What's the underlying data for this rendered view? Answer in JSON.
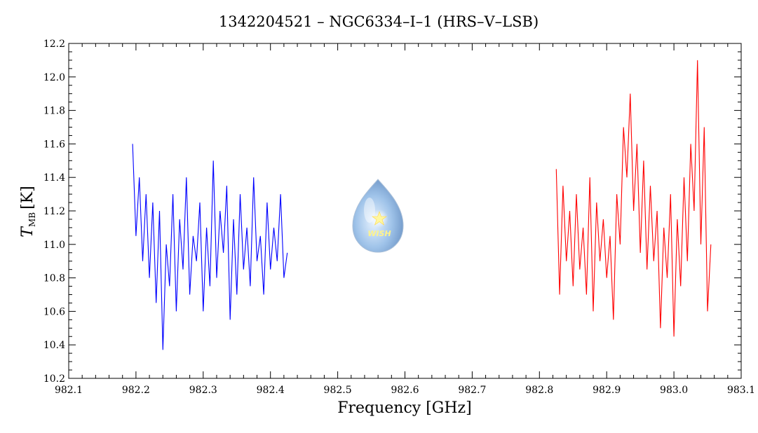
{
  "chart_data": {
    "type": "line",
    "title": "1342204521 – NGC6334–I–1 (HRS–V–LSB)",
    "xlabel": "Frequency [GHz]",
    "ylabel_main": "T",
    "ylabel_sub": "MB",
    "ylabel_unit": "[K]",
    "xlim": [
      982.1,
      983.1
    ],
    "ylim": [
      10.2,
      12.2
    ],
    "xticks": [
      982.1,
      982.2,
      982.3,
      982.4,
      982.5,
      982.6,
      982.7,
      982.8,
      982.9,
      983.0,
      983.1
    ],
    "yticks": [
      10.2,
      10.4,
      10.6,
      10.8,
      11.0,
      11.2,
      11.4,
      11.6,
      11.8,
      12.0,
      12.2
    ],
    "xtick_labels": [
      "982.1",
      "982.2",
      "982.3",
      "982.4",
      "982.5",
      "982.6",
      "982.7",
      "982.8",
      "982.9",
      "983.0",
      "983.1"
    ],
    "ytick_labels": [
      "10.2",
      "10.4",
      "10.6",
      "10.8",
      "11.0",
      "11.2",
      "11.4",
      "11.6",
      "11.8",
      "12.0",
      "12.2"
    ],
    "grid": false,
    "logo_text": "WISH",
    "series": [
      {
        "color": "#0000ff",
        "x": [
          982.195,
          982.2,
          982.205,
          982.21,
          982.215,
          982.22,
          982.225,
          982.23,
          982.235,
          982.24,
          982.245,
          982.25,
          982.255,
          982.26,
          982.265,
          982.27,
          982.275,
          982.28,
          982.285,
          982.29,
          982.295,
          982.3,
          982.305,
          982.31,
          982.315,
          982.32,
          982.325,
          982.33,
          982.335,
          982.34,
          982.345,
          982.35,
          982.355,
          982.36,
          982.365,
          982.37,
          982.375,
          982.38,
          982.385,
          982.39,
          982.395,
          982.4,
          982.405,
          982.41,
          982.415,
          982.42,
          982.425
        ],
        "y": [
          11.6,
          11.05,
          11.4,
          10.9,
          11.3,
          10.8,
          11.25,
          10.65,
          11.2,
          10.37,
          11.0,
          10.75,
          11.3,
          10.6,
          11.15,
          10.85,
          11.4,
          10.7,
          11.05,
          10.9,
          11.25,
          10.6,
          11.1,
          10.75,
          11.5,
          10.8,
          11.2,
          10.95,
          11.35,
          10.55,
          11.15,
          10.7,
          11.3,
          10.85,
          11.1,
          10.75,
          11.4,
          10.9,
          11.05,
          10.7,
          11.25,
          10.85,
          11.1,
          10.9,
          11.3,
          10.8,
          10.95
        ]
      },
      {
        "color": "#ff0000",
        "x": [
          982.825,
          982.83,
          982.835,
          982.84,
          982.845,
          982.85,
          982.855,
          982.86,
          982.865,
          982.87,
          982.875,
          982.88,
          982.885,
          982.89,
          982.895,
          982.9,
          982.905,
          982.91,
          982.915,
          982.92,
          982.925,
          982.93,
          982.935,
          982.94,
          982.945,
          982.95,
          982.955,
          982.96,
          982.965,
          982.97,
          982.975,
          982.98,
          982.985,
          982.99,
          982.995,
          983.0,
          983.005,
          983.01,
          983.015,
          983.02,
          983.025,
          983.03,
          983.035,
          983.04,
          983.045,
          983.05,
          983.055
        ],
        "y": [
          11.45,
          10.7,
          11.35,
          10.9,
          11.2,
          10.75,
          11.3,
          10.85,
          11.1,
          10.7,
          11.4,
          10.6,
          11.25,
          10.9,
          11.15,
          10.8,
          11.05,
          10.55,
          11.3,
          11.0,
          11.7,
          11.4,
          11.9,
          11.2,
          11.6,
          10.95,
          11.5,
          10.85,
          11.35,
          10.9,
          11.2,
          10.5,
          11.1,
          10.8,
          11.3,
          10.45,
          11.15,
          10.75,
          11.4,
          10.9,
          11.6,
          11.2,
          12.1,
          11.0,
          11.7,
          10.6,
          11.0
        ]
      }
    ]
  }
}
